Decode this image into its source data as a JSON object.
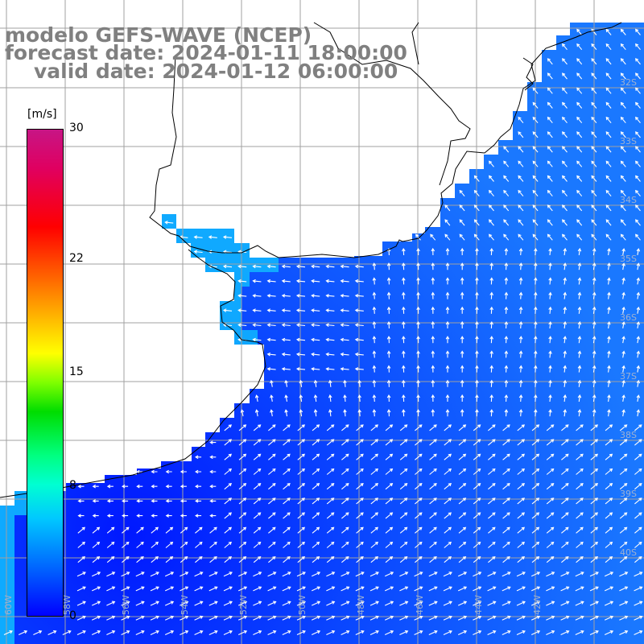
{
  "title": {
    "line1": "modelo GEFS-WAVE (NCEP)",
    "line2": "forecast date: 2024-01-11 18:00:00",
    "line3": "valid date: 2024-01-12 06:00:00"
  },
  "colorbar": {
    "unit": "[m/s]",
    "ticks": [
      "30",
      "22",
      "15",
      "8",
      "0"
    ],
    "range": [
      0,
      30
    ],
    "colors": [
      "#0000ff",
      "#00c8ff",
      "#00dd00",
      "#ffff00",
      "#ff0000",
      "#c71585"
    ]
  },
  "map": {
    "variable": "wind speed and direction",
    "land_color": "#ffffff",
    "coastline_color": "#000000",
    "grid_color": "#a0a0a0",
    "arrow_color": "#ffffff",
    "longitude_labels": [
      "60W",
      "58W",
      "56W",
      "54W",
      "52W",
      "50W",
      "48W",
      "46W",
      "44W",
      "42W"
    ],
    "latitude_labels": [
      "32S",
      "33S",
      "34S",
      "35S",
      "36S",
      "37S",
      "38S",
      "39S",
      "40S"
    ]
  }
}
